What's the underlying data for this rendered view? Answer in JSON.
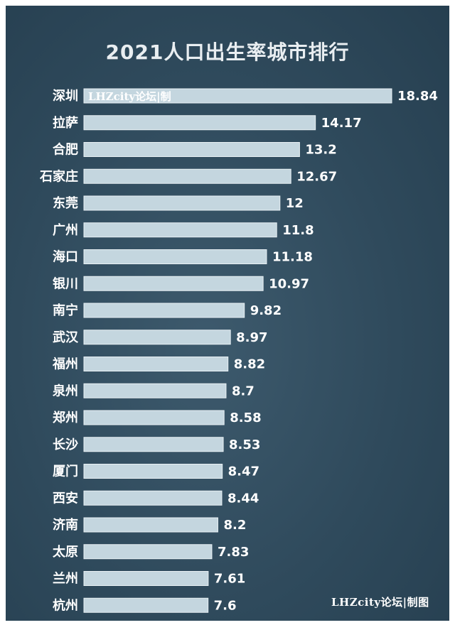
{
  "chart_data": {
    "type": "bar",
    "orientation": "horizontal",
    "title": "2021人口出生率城市排行",
    "categories": [
      "深圳",
      "拉萨",
      "合肥",
      "石家庄",
      "东莞",
      "广州",
      "海口",
      "银川",
      "南宁",
      "武汉",
      "福州",
      "泉州",
      "郑州",
      "长沙",
      "厦门",
      "西安",
      "济南",
      "太原",
      "兰州",
      "杭州"
    ],
    "values": [
      18.84,
      14.17,
      13.2,
      12.67,
      12,
      11.8,
      11.18,
      10.97,
      9.82,
      8.97,
      8.82,
      8.7,
      8.58,
      8.53,
      8.47,
      8.44,
      8.2,
      7.83,
      7.61,
      7.6
    ],
    "value_labels": [
      "18.84",
      "14.17",
      "13.2",
      "12.67",
      "12",
      "11.8",
      "11.18",
      "10.97",
      "9.82",
      "8.97",
      "8.82",
      "8.7",
      "8.58",
      "8.53",
      "8.47",
      "8.44",
      "8.2",
      "7.83",
      "7.61",
      "7.6"
    ],
    "grid": false,
    "legend": "none"
  },
  "watermark": {
    "in_bar": "LHZcity论坛|制",
    "bottom_right": "LHZcity论坛|制图"
  },
  "colors": {
    "background": "#2f4a5c",
    "bar": "#c4d6df",
    "text": "#ffffff"
  }
}
